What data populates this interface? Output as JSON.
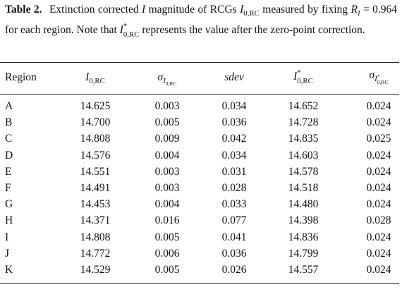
{
  "caption": {
    "label": "Table 2.",
    "parts": [
      "Extinction corrected",
      "I",
      "magnitude of RCGs",
      "I",
      "0,RC",
      "measured by fixing",
      "R",
      "I",
      "= 0.964 for each region. Note that",
      "I",
      "*",
      "0,RC",
      "represents the value after the zero-point correction."
    ]
  },
  "table": {
    "headers": [
      [
        "Region"
      ],
      [
        "I",
        "0,RC"
      ],
      [
        "σ",
        "I",
        "0,RC"
      ],
      [
        "sdev"
      ],
      [
        "I",
        "*",
        "0,RC"
      ],
      [
        "σ",
        "I",
        "*",
        "0,RC"
      ]
    ],
    "rows": [
      [
        "A",
        "14.625",
        "0.003",
        "0.034",
        "14.652",
        "0.024"
      ],
      [
        "B",
        "14.700",
        "0.005",
        "0.036",
        "14.728",
        "0.024"
      ],
      [
        "C",
        "14.808",
        "0.009",
        "0.042",
        "14.835",
        "0.025"
      ],
      [
        "D",
        "14.576",
        "0.004",
        "0.034",
        "14.603",
        "0.024"
      ],
      [
        "E",
        "14.551",
        "0.003",
        "0.031",
        "14.578",
        "0.024"
      ],
      [
        "F",
        "14.491",
        "0.003",
        "0.028",
        "14.518",
        "0.024"
      ],
      [
        "G",
        "14.453",
        "0.004",
        "0.033",
        "14.480",
        "0.024"
      ],
      [
        "H",
        "14.371",
        "0.016",
        "0.077",
        "14.398",
        "0.028"
      ],
      [
        "I",
        "14.808",
        "0.005",
        "0.041",
        "14.836",
        "0.024"
      ],
      [
        "J",
        "14.772",
        "0.006",
        "0.036",
        "14.799",
        "0.024"
      ],
      [
        "K",
        "14.529",
        "0.005",
        "0.026",
        "14.557",
        "0.024"
      ]
    ]
  }
}
